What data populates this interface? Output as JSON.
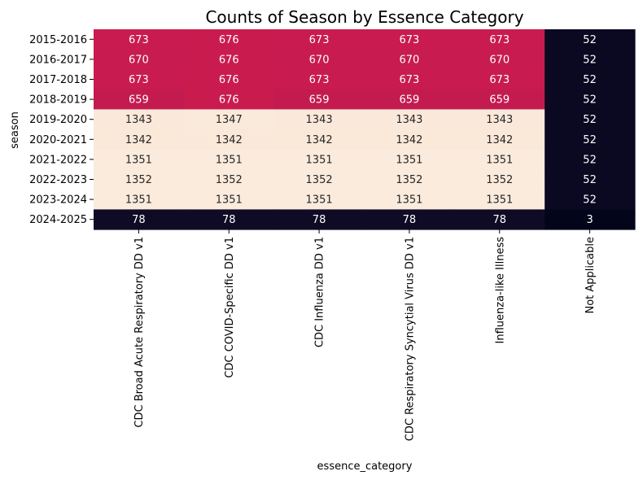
{
  "chart_data": {
    "type": "heatmap",
    "title": "Counts of Season by Essence Category",
    "xlabel": "essence_category",
    "ylabel": "season",
    "columns": [
      "CDC Broad Acute Respiratory DD v1",
      "CDC COVID-Specific DD v1",
      "CDC Influenza DD v1",
      "CDC Respiratory Syncytial Virus DD v1",
      "Influenza-like Illness",
      "Not Applicable"
    ],
    "rows": [
      "2015-2016",
      "2016-2017",
      "2017-2018",
      "2018-2019",
      "2019-2020",
      "2020-2021",
      "2021-2022",
      "2022-2023",
      "2023-2024",
      "2024-2025"
    ],
    "values": [
      [
        673,
        676,
        673,
        673,
        673,
        52
      ],
      [
        670,
        676,
        670,
        670,
        670,
        52
      ],
      [
        673,
        676,
        673,
        673,
        673,
        52
      ],
      [
        659,
        676,
        659,
        659,
        659,
        52
      ],
      [
        1343,
        1347,
        1343,
        1343,
        1343,
        52
      ],
      [
        1342,
        1342,
        1342,
        1342,
        1342,
        52
      ],
      [
        1351,
        1351,
        1351,
        1351,
        1351,
        52
      ],
      [
        1352,
        1352,
        1352,
        1352,
        1352,
        52
      ],
      [
        1351,
        1351,
        1351,
        1351,
        1351,
        52
      ],
      [
        78,
        78,
        78,
        78,
        78,
        3
      ]
    ],
    "colormap": "rocket",
    "colorbar": false,
    "annotations": true
  }
}
